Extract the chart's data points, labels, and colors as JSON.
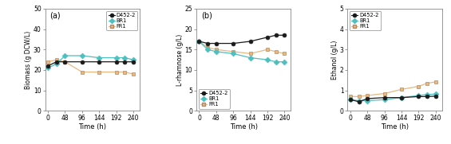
{
  "time": [
    0,
    24,
    48,
    96,
    144,
    192,
    216,
    240
  ],
  "biomass_D452": [
    22,
    24,
    24,
    24,
    24,
    24,
    24,
    24
  ],
  "biomass_BR1": [
    21,
    23,
    27,
    27,
    26,
    26,
    26,
    25
  ],
  "biomass_FR1": [
    24,
    25,
    24,
    19,
    19,
    19,
    19,
    18
  ],
  "lrhamnose_D452": [
    17,
    16.5,
    16.5,
    16.5,
    17,
    18,
    18.5,
    18.5
  ],
  "lrhamnose_BR1": [
    17,
    15,
    14.5,
    14,
    13,
    12.5,
    12,
    12
  ],
  "lrhamnose_FR1": [
    17,
    15.5,
    15,
    14.5,
    14,
    15,
    14.5,
    14
  ],
  "ethanol_D452": [
    0.55,
    0.45,
    0.6,
    0.65,
    0.65,
    0.7,
    0.7,
    0.72
  ],
  "ethanol_BR1": [
    0.55,
    0.5,
    0.5,
    0.55,
    0.65,
    0.75,
    0.8,
    0.82
  ],
  "ethanol_FR1": [
    0.7,
    0.7,
    0.75,
    0.85,
    1.05,
    1.2,
    1.35,
    1.42
  ],
  "color_D452": "#1a1a1a",
  "color_BR1": "#4dbfbf",
  "color_FR1": "#e8b882",
  "edge_FR1": "#b8885a",
  "title_a": "(a)",
  "title_b": "(b)",
  "title_c": "(c)",
  "ylabel_a": "Biomass (g DCW/L)",
  "ylabel_b": "L-rhamnose (g/L)",
  "ylabel_c": "Ethanol (g/L)",
  "xlabel": "Time (h)",
  "ylim_a": [
    0,
    50
  ],
  "ylim_b": [
    0,
    25
  ],
  "ylim_c": [
    0,
    5
  ],
  "yticks_a": [
    0,
    10,
    20,
    30,
    40,
    50
  ],
  "yticks_b": [
    0,
    5,
    10,
    15,
    20,
    25
  ],
  "yticks_c": [
    0,
    1,
    2,
    3,
    4,
    5
  ],
  "xticks": [
    0,
    48,
    96,
    144,
    192,
    240
  ],
  "legend_D452": "D452-2",
  "legend_BR1": "BR1",
  "legend_FR1": "FR1",
  "spine_color": "#888888"
}
